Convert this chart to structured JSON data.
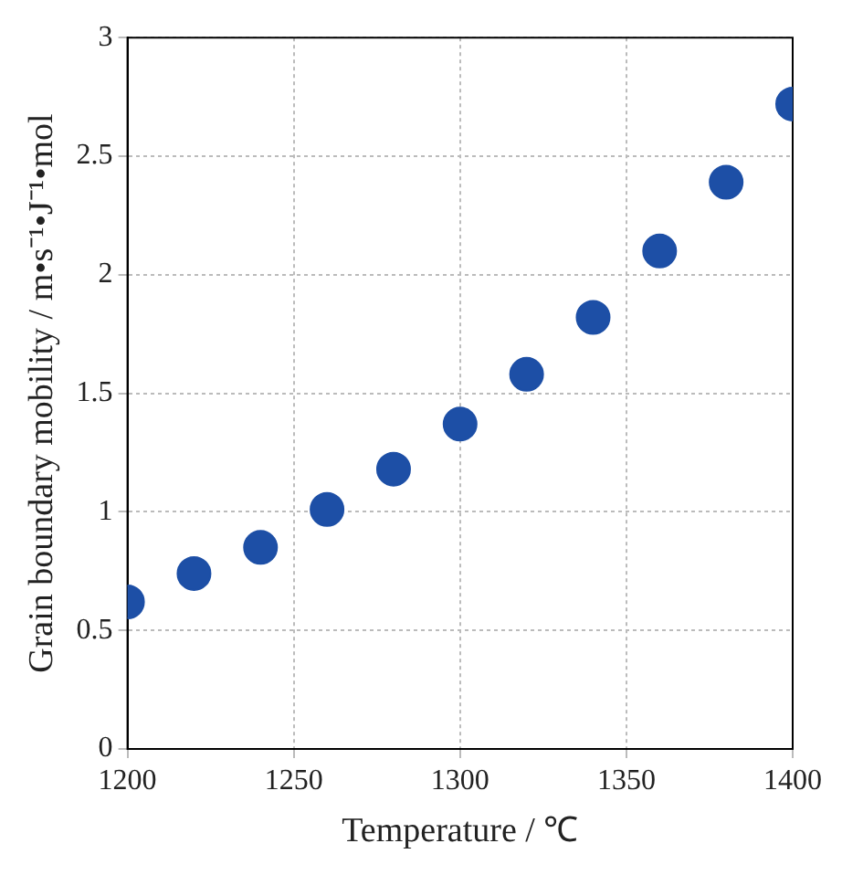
{
  "chart_data": {
    "type": "scatter",
    "xlabel": "Temperature / ℃",
    "ylabel": "Grain boundary mobility / m•s⁻¹•J⁻¹•mol",
    "x": [
      1200,
      1220,
      1240,
      1260,
      1280,
      1300,
      1320,
      1340,
      1360,
      1380,
      1400
    ],
    "series": [
      {
        "color": "#1d4fa6",
        "values": [
          0.62,
          0.74,
          0.85,
          1.01,
          1.18,
          1.37,
          1.58,
          1.82,
          2.1,
          2.39,
          2.72
        ]
      }
    ],
    "xlim": [
      1200,
      1400
    ],
    "xticks": [
      1200,
      1250,
      1300,
      1350,
      1400
    ],
    "ylim": [
      0,
      3
    ],
    "yticks": [
      0,
      0.5,
      1,
      1.5,
      2,
      2.5,
      3
    ],
    "grid": true,
    "marker": "circle",
    "legend": false
  }
}
